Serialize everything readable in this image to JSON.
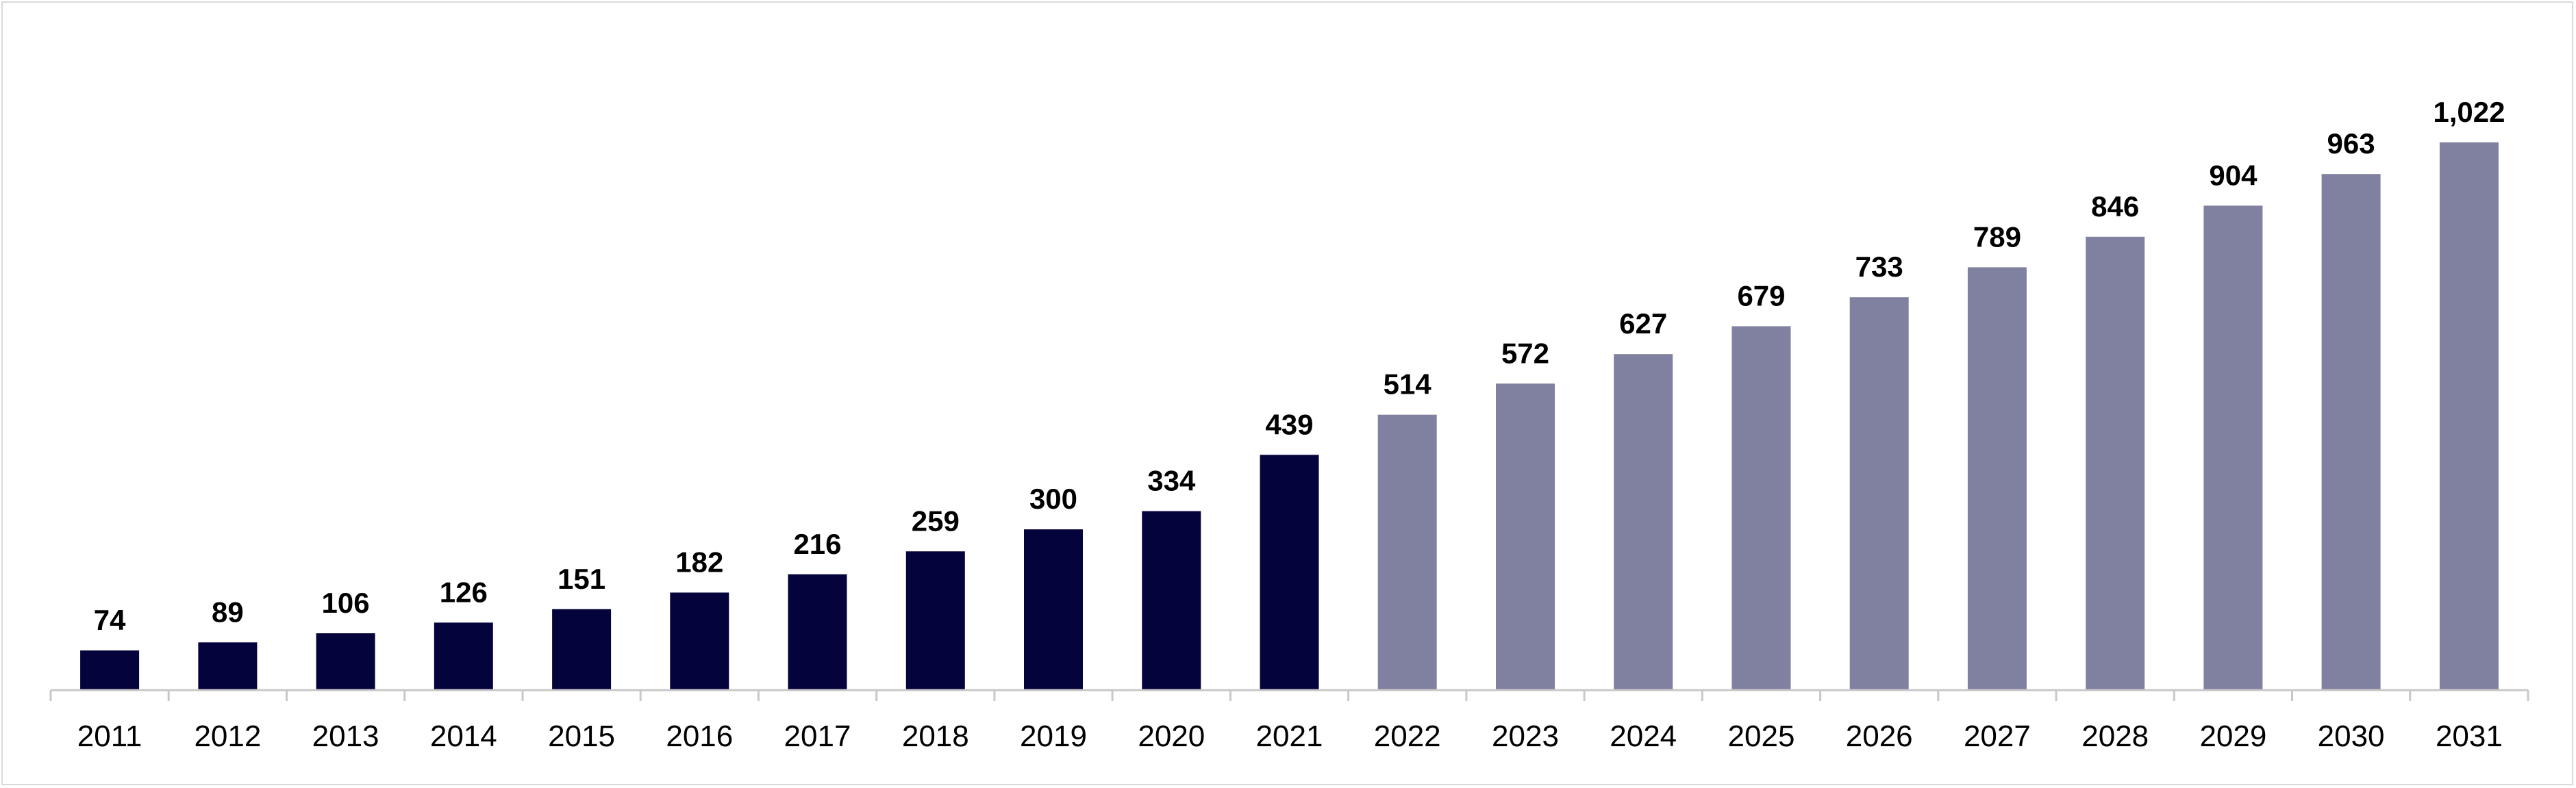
{
  "chart_data": {
    "type": "bar",
    "title": "",
    "xlabel": "",
    "ylabel": "",
    "categories": [
      "2011",
      "2012",
      "2013",
      "2014",
      "2015",
      "2016",
      "2017",
      "2018",
      "2019",
      "2020",
      "2021",
      "2022",
      "2023",
      "2024",
      "2025",
      "2026",
      "2027",
      "2028",
      "2029",
      "2030",
      "2031"
    ],
    "values": [
      74,
      89,
      106,
      126,
      151,
      182,
      216,
      259,
      300,
      334,
      439,
      514,
      572,
      627,
      679,
      733,
      789,
      846,
      904,
      963,
      1022
    ],
    "data_labels": [
      "74",
      "89",
      "106",
      "126",
      "151",
      "182",
      "216",
      "259",
      "300",
      "334",
      "439",
      "514",
      "572",
      "627",
      "679",
      "733",
      "789",
      "846",
      "904",
      "963",
      "1,022"
    ],
    "ylim": [
      0,
      1100
    ],
    "grid": false,
    "legend": "none",
    "colors": {
      "historical": "#05033c",
      "forecast": "#8080a0",
      "axis": "#c8c8c8"
    },
    "historical_through": "2021"
  }
}
